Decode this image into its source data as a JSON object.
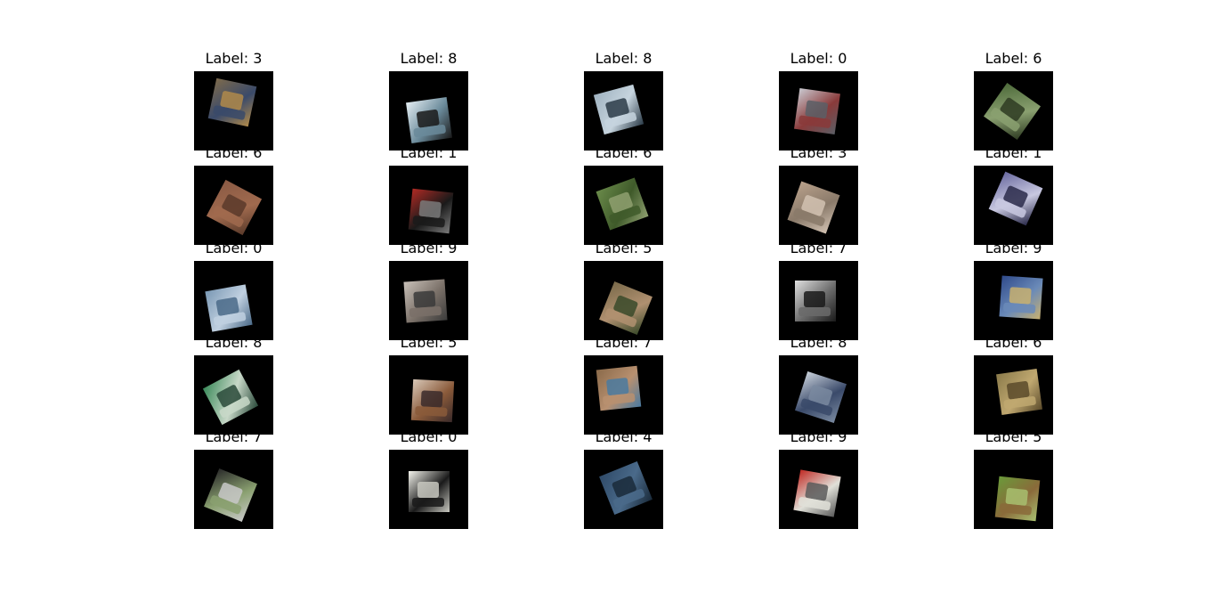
{
  "images": [
    {
      "label": "3",
      "title": "Label: 3",
      "colors": [
        "#7d6a4c",
        "#3a4a6a",
        "#b08a4a"
      ],
      "rotation": 12,
      "offset": [
        10,
        2
      ]
    },
    {
      "label": "8",
      "title": "Label: 8",
      "colors": [
        "#e5eef3",
        "#6a8a9a",
        "#1a1a1a"
      ],
      "rotation": -8,
      "offset": [
        12,
        22
      ]
    },
    {
      "label": "8",
      "title": "Label: 8",
      "colors": [
        "#9fb2c0",
        "#c6d4de",
        "#2b3b48"
      ],
      "rotation": -15,
      "offset": [
        6,
        10
      ]
    },
    {
      "label": "0",
      "title": "Label: 0",
      "colors": [
        "#c9c9d0",
        "#8a3a3a",
        "#5b5f66"
      ],
      "rotation": 8,
      "offset": [
        10,
        12
      ]
    },
    {
      "label": "6",
      "title": "Label: 6",
      "colors": [
        "#4d6a3a",
        "#8aa070",
        "#2e3b22"
      ],
      "rotation": 35,
      "offset": [
        10,
        12
      ]
    },
    {
      "label": "6",
      "title": "Label: 6",
      "colors": [
        "#8a5a44",
        "#a06a4e",
        "#5a3a2a"
      ],
      "rotation": 28,
      "offset": [
        12,
        14
      ]
    },
    {
      "label": "1",
      "title": "Label: 1",
      "colors": [
        "#b02a24",
        "#1a1a1a",
        "#7a7a7a"
      ],
      "rotation": 6,
      "offset": [
        14,
        18
      ]
    },
    {
      "label": "6",
      "title": "Label: 6",
      "colors": [
        "#6a8a4a",
        "#3f5a2a",
        "#8fa070"
      ],
      "rotation": -20,
      "offset": [
        10,
        10
      ]
    },
    {
      "label": "3",
      "title": "Label: 3",
      "colors": [
        "#b8a08a",
        "#8a7a6a",
        "#d2c2b2"
      ],
      "rotation": 20,
      "offset": [
        6,
        14
      ]
    },
    {
      "label": "1",
      "title": "Label: 1",
      "colors": [
        "#6a6aa0",
        "#c8c8e0",
        "#2a2a4a"
      ],
      "rotation": 24,
      "offset": [
        14,
        4
      ]
    },
    {
      "label": "0",
      "title": "Label: 0",
      "colors": [
        "#7a98b4",
        "#c0d0e0",
        "#4a6a88"
      ],
      "rotation": -10,
      "offset": [
        6,
        20
      ]
    },
    {
      "label": "9",
      "title": "Label: 9",
      "colors": [
        "#c8c0b8",
        "#7a7068",
        "#3a3a3a"
      ],
      "rotation": -4,
      "offset": [
        8,
        12
      ]
    },
    {
      "label": "5",
      "title": "Label: 5",
      "colors": [
        "#7a6a4a",
        "#b09070",
        "#3a4a2a"
      ],
      "rotation": 22,
      "offset": [
        14,
        20
      ]
    },
    {
      "label": "7",
      "title": "Label: 7",
      "colors": [
        "#e0e0e0",
        "#6a6a6a",
        "#1a1a1a"
      ],
      "rotation": 0,
      "offset": [
        8,
        12
      ]
    },
    {
      "label": "9",
      "title": "Label: 9",
      "colors": [
        "#2f4a8a",
        "#6a8ab8",
        "#c8b070"
      ],
      "rotation": 4,
      "offset": [
        20,
        8
      ]
    },
    {
      "label": "8",
      "title": "Label: 8",
      "colors": [
        "#3a8a5a",
        "#c8d8c8",
        "#2a4a3a"
      ],
      "rotation": -28,
      "offset": [
        8,
        14
      ]
    },
    {
      "label": "5",
      "title": "Label: 5",
      "colors": [
        "#d8c8b8",
        "#8a5a3a",
        "#3a2a2a"
      ],
      "rotation": 3,
      "offset": [
        16,
        18
      ]
    },
    {
      "label": "7",
      "title": "Label: 7",
      "colors": [
        "#8a6a4a",
        "#b89070",
        "#4a7aa0"
      ],
      "rotation": -6,
      "offset": [
        6,
        4
      ]
    },
    {
      "label": "8",
      "title": "Label: 8",
      "colors": [
        "#c8d0da",
        "#3a4a6a",
        "#7a8aa0"
      ],
      "rotation": 18,
      "offset": [
        14,
        14
      ]
    },
    {
      "label": "6",
      "title": "Label: 6",
      "colors": [
        "#8a7a4a",
        "#c0a870",
        "#5a4a2a"
      ],
      "rotation": -8,
      "offset": [
        18,
        8
      ]
    },
    {
      "label": "7",
      "title": "Label: 7",
      "colors": [
        "#2a2a2a",
        "#8aa070",
        "#c8c8c8"
      ],
      "rotation": 22,
      "offset": [
        8,
        18
      ]
    },
    {
      "label": "0",
      "title": "Label: 0",
      "colors": [
        "#f5f5ee",
        "#1a1a1a",
        "#c8c8c0"
      ],
      "rotation": 0,
      "offset": [
        12,
        14
      ]
    },
    {
      "label": "4",
      "title": "Label: 4",
      "colors": [
        "#2f4a68",
        "#4a6a8a",
        "#1a2a3a"
      ],
      "rotation": -22,
      "offset": [
        14,
        10
      ]
    },
    {
      "label": "9",
      "title": "Label: 9",
      "colors": [
        "#c02a24",
        "#e0e0d8",
        "#5a5a5a"
      ],
      "rotation": 10,
      "offset": [
        10,
        16
      ]
    },
    {
      "label": "5",
      "title": "Label: 5",
      "colors": [
        "#6a9a3a",
        "#8a6a3a",
        "#a8c070"
      ],
      "rotation": 6,
      "offset": [
        16,
        22
      ]
    }
  ]
}
